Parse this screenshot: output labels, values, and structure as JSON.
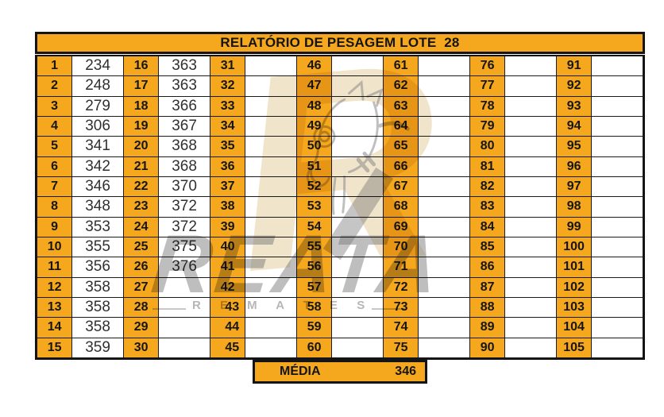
{
  "title": "RELATÓRIO DE PESAGEM LOTE  28",
  "summary": {
    "label": "MÉDIA",
    "value": "346"
  },
  "watermark": {
    "monogram": "R",
    "brand": "REATA",
    "sub_brand": "R E M A T E S"
  },
  "colors": {
    "accent_orange": "#F5A71D",
    "grid_black": "#141414",
    "value_text": "#303030",
    "watermark_gray": "#7E7E7E",
    "watermark_tan": "#E4CD9E"
  },
  "table": {
    "right_aligned_numbers": [
      "43",
      "44",
      "45"
    ],
    "column_pairs": [
      {
        "numbers": [
          "1",
          "2",
          "3",
          "4",
          "5",
          "6",
          "7",
          "8",
          "9",
          "10",
          "11",
          "12",
          "13",
          "14",
          "15"
        ],
        "values": [
          "234",
          "248",
          "279",
          "306",
          "341",
          "342",
          "346",
          "348",
          "353",
          "355",
          "356",
          "358",
          "358",
          "358",
          "359"
        ]
      },
      {
        "numbers": [
          "16",
          "17",
          "18",
          "19",
          "20",
          "21",
          "22",
          "23",
          "24",
          "25",
          "26",
          "27",
          "28",
          "29",
          "30"
        ],
        "values": [
          "363",
          "363",
          "366",
          "367",
          "368",
          "368",
          "370",
          "372",
          "372",
          "375",
          "376",
          "",
          "",
          "",
          ""
        ]
      },
      {
        "numbers": [
          "31",
          "32",
          "33",
          "34",
          "35",
          "36",
          "37",
          "38",
          "39",
          "40",
          "41",
          "42",
          "43",
          "44",
          "45"
        ],
        "values": [
          "",
          "",
          "",
          "",
          "",
          "",
          "",
          "",
          "",
          "",
          "",
          "",
          "",
          "",
          ""
        ]
      },
      {
        "numbers": [
          "46",
          "47",
          "48",
          "49",
          "50",
          "51",
          "52",
          "53",
          "54",
          "55",
          "56",
          "57",
          "58",
          "59",
          "60"
        ],
        "values": [
          "",
          "",
          "",
          "",
          "",
          "",
          "",
          "",
          "",
          "",
          "",
          "",
          "",
          "",
          ""
        ]
      },
      {
        "numbers": [
          "61",
          "62",
          "63",
          "64",
          "65",
          "66",
          "67",
          "68",
          "69",
          "70",
          "71",
          "72",
          "73",
          "74",
          "75"
        ],
        "values": [
          "",
          "",
          "",
          "",
          "",
          "",
          "",
          "",
          "",
          "",
          "",
          "",
          "",
          "",
          ""
        ]
      },
      {
        "numbers": [
          "76",
          "77",
          "78",
          "79",
          "80",
          "81",
          "82",
          "83",
          "84",
          "85",
          "86",
          "87",
          "88",
          "89",
          "90"
        ],
        "values": [
          "",
          "",
          "",
          "",
          "",
          "",
          "",
          "",
          "",
          "",
          "",
          "",
          "",
          "",
          ""
        ]
      },
      {
        "numbers": [
          "91",
          "92",
          "93",
          "94",
          "95",
          "96",
          "97",
          "98",
          "99",
          "100",
          "101",
          "102",
          "103",
          "104",
          "105"
        ],
        "values": [
          "",
          "",
          "",
          "",
          "",
          "",
          "",
          "",
          "",
          "",
          "",
          "",
          "",
          "",
          ""
        ]
      }
    ]
  },
  "chart_data": {
    "type": "table",
    "title": "RELATÓRIO DE PESAGEM LOTE  28",
    "slots_total": 105,
    "filled_slots": [
      1,
      2,
      3,
      4,
      5,
      6,
      7,
      8,
      9,
      10,
      11,
      12,
      13,
      14,
      15,
      16,
      17,
      18,
      19,
      20,
      21,
      22,
      23,
      24,
      25,
      26
    ],
    "weights": [
      234,
      248,
      279,
      306,
      341,
      342,
      346,
      348,
      353,
      355,
      356,
      358,
      358,
      358,
      359,
      363,
      363,
      366,
      367,
      368,
      368,
      370,
      372,
      372,
      375,
      376
    ],
    "media": 346
  }
}
